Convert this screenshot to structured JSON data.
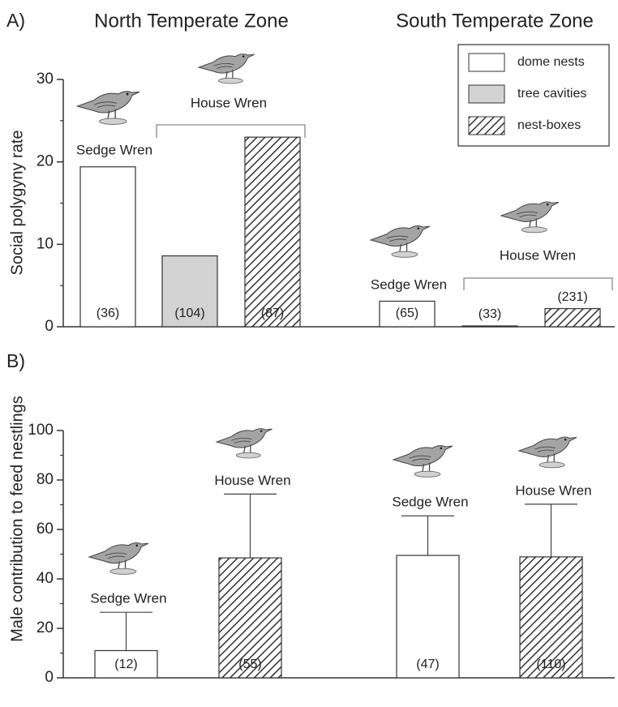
{
  "chart_data": [
    {
      "type": "bar",
      "panel_label": "A)",
      "categories": [
        "North Temperate Zone",
        "South Temperate Zone"
      ],
      "ylabel": "Social polygyny rate",
      "ylim": [
        0,
        30
      ],
      "yticks": [
        0,
        10,
        20,
        30
      ],
      "yminor_ticks": [
        5,
        15,
        25
      ],
      "series": [
        {
          "name": "dome nests",
          "color": "#ffffff",
          "hatch": false,
          "values": [
            19.4,
            3.1
          ],
          "sample_sizes": [
            "(36)",
            "(65)"
          ]
        },
        {
          "name": "tree cavities",
          "color": "#d3d3d3",
          "hatch": false,
          "values": [
            8.6,
            0.1
          ],
          "sample_sizes": [
            "(104)",
            "(33)"
          ]
        },
        {
          "name": "nest-boxes",
          "color": "#ffffff",
          "hatch": true,
          "values": [
            23,
            2.2
          ],
          "sample_sizes": [
            "(87)",
            "(231)"
          ]
        }
      ],
      "species_labels": [
        [
          "Sedge Wren",
          "House Wren"
        ],
        [
          "Sedge Wren",
          "House Wren"
        ]
      ],
      "legend": "upper right"
    },
    {
      "type": "bar",
      "panel_label": "B)",
      "categories": [
        null,
        null
      ],
      "ylabel": "Male contribution to feed nestlings",
      "ylim": [
        0,
        100
      ],
      "yticks": [
        0,
        20,
        40,
        60,
        80,
        100
      ],
      "yminor_ticks": [
        10,
        30,
        50,
        70,
        90
      ],
      "series": [
        {
          "color": "#ffffff",
          "hatch": false,
          "values": [
            11,
            49.5
          ],
          "errors": [
            15.5,
            16
          ],
          "sample_sizes": [
            "(12)",
            "(47)"
          ]
        },
        {
          "color": "#ffffff",
          "hatch": true,
          "values": [
            48.5,
            48.9
          ],
          "errors": [
            25.8,
            21.3
          ],
          "sample_sizes": [
            "(55)",
            "(110)"
          ]
        }
      ],
      "species_labels": [
        [
          "Sedge Wren",
          "House Wren"
        ],
        [
          "Sedge Wren",
          "House Wren"
        ]
      ]
    }
  ]
}
